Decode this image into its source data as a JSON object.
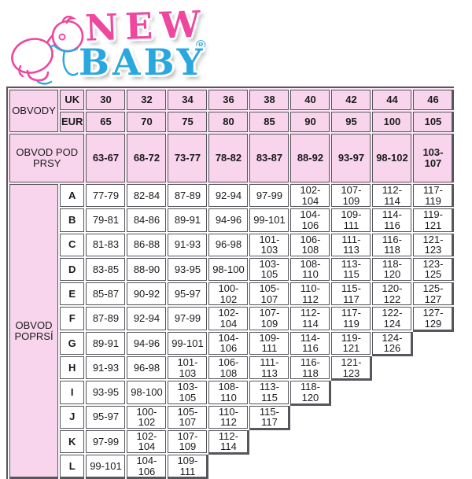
{
  "logo": {
    "brand_top": "NEW",
    "brand_bottom": "BABY",
    "registered_mark": "®",
    "colors": {
      "pink": "#ef479e",
      "blue": "#29a8e0"
    }
  },
  "chart_data": {
    "type": "table",
    "corner_label": "OBVODY",
    "size_rows": [
      {
        "label": "UK",
        "values": [
          "30",
          "32",
          "34",
          "36",
          "38",
          "40",
          "42",
          "44",
          "46"
        ]
      },
      {
        "label": "EUR",
        "values": [
          "65",
          "70",
          "75",
          "80",
          "85",
          "90",
          "95",
          "100",
          "105"
        ]
      }
    ],
    "underbust_row": {
      "label": "OBVOD POD PRSY",
      "values": [
        "63-67",
        "68-72",
        "73-77",
        "78-82",
        "83-87",
        "88-92",
        "93-97",
        "98-102",
        "103-107"
      ]
    },
    "bust_section": {
      "label": "OBVOD POPRSÍ",
      "rows": [
        {
          "cup": "A",
          "values": [
            "77-79",
            "82-84",
            "87-89",
            "92-94",
            "97-99",
            "102-104",
            "107-109",
            "112-114",
            "117-119"
          ]
        },
        {
          "cup": "B",
          "values": [
            "79-81",
            "84-86",
            "89-91",
            "94-96",
            "99-101",
            "104-106",
            "109-111",
            "114-116",
            "119-121"
          ]
        },
        {
          "cup": "C",
          "values": [
            "81-83",
            "86-88",
            "91-93",
            "96-98",
            "101-103",
            "106-108",
            "111-113",
            "116-118",
            "121-123"
          ]
        },
        {
          "cup": "D",
          "values": [
            "83-85",
            "88-90",
            "93-95",
            "98-100",
            "103-105",
            "108-110",
            "113-115",
            "118-120",
            "123-125"
          ]
        },
        {
          "cup": "E",
          "values": [
            "85-87",
            "90-92",
            "95-97",
            "100-102",
            "105-107",
            "110-112",
            "115-117",
            "120-122",
            "125-127"
          ]
        },
        {
          "cup": "F",
          "values": [
            "87-89",
            "92-94",
            "97-99",
            "102-104",
            "107-109",
            "112-114",
            "117-119",
            "122-124",
            "127-129"
          ]
        },
        {
          "cup": "G",
          "values": [
            "89-91",
            "94-96",
            "99-101",
            "104-106",
            "109-111",
            "114-116",
            "119-121",
            "124-126"
          ]
        },
        {
          "cup": "H",
          "values": [
            "91-93",
            "96-98",
            "101-103",
            "106-108",
            "111-113",
            "116-118",
            "121-123"
          ]
        },
        {
          "cup": "I",
          "values": [
            "93-95",
            "98-100",
            "103-105",
            "108-110",
            "113-115",
            "118-120"
          ]
        },
        {
          "cup": "J",
          "values": [
            "95-97",
            "100-102",
            "105-107",
            "110-112",
            "115-117"
          ]
        },
        {
          "cup": "K",
          "values": [
            "97-99",
            "102-104",
            "107-109",
            "112-114"
          ]
        },
        {
          "cup": "L",
          "values": [
            "99-101",
            "104-106",
            "109-111"
          ]
        }
      ]
    },
    "colors": {
      "header_cell_bg": "#f8d5ec",
      "header_gap_bg": "#fde9f6",
      "body_cell_bg": "#ffffff",
      "border": "#56565c"
    }
  }
}
